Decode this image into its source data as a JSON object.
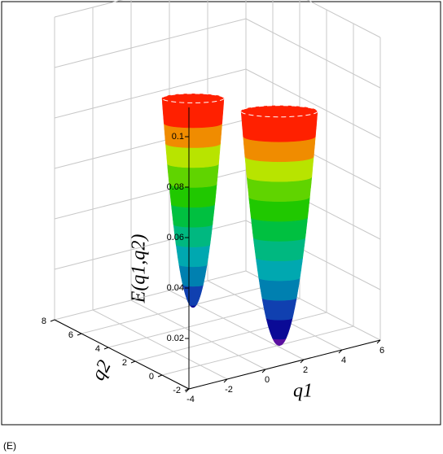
{
  "chart_data": {
    "type": "surface3d",
    "x_label": "q1",
    "y_label": "q2",
    "z_label": "E(q1,q2)",
    "xlim": [
      -4,
      6
    ],
    "xticks": [
      -4,
      -2,
      0,
      2,
      4,
      6
    ],
    "ylim": [
      -2,
      8
    ],
    "yticks": [
      -2,
      0,
      2,
      4,
      6,
      8
    ],
    "zlim": [
      0,
      0.12
    ],
    "zticks": [
      0.02,
      0.04,
      0.06,
      0.08,
      0.1
    ],
    "grid": true,
    "levels": [
      0.02,
      0.028,
      0.036,
      0.044,
      0.052,
      0.06,
      0.068,
      0.076,
      0.084,
      0.092,
      0.1,
      0.108,
      0.118
    ],
    "colors": [
      "#5a0fa0",
      "#0a0a96",
      "#1040b0",
      "#0080b0",
      "#00a8b0",
      "#00b880",
      "#00c040",
      "#20c800",
      "#60d400",
      "#b8e400",
      "#f08c00",
      "#ff2000"
    ]
  },
  "caption": "(E)"
}
